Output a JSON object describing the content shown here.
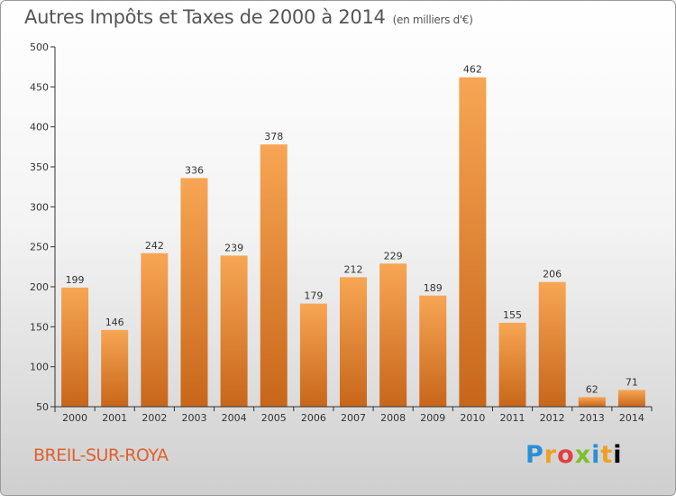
{
  "header": {
    "title": "Autres Impôts et Taxes de 2000 à 2014",
    "unit": "(en milliers d'€)"
  },
  "footer": {
    "city": "BREIL-SUR-ROYA",
    "logo_letters": [
      "P",
      "r",
      "o",
      "x",
      "i",
      "t",
      "i"
    ]
  },
  "colors": {
    "bar_top": "#f7a654",
    "bar_bottom": "#c8661a",
    "axis": "#333333",
    "city_text": "#e06030"
  },
  "chart_data": {
    "type": "bar",
    "title": "Autres Impôts et Taxes de 2000 à 2014",
    "subtitle": "(en milliers d'€)",
    "categories": [
      "2000",
      "2001",
      "2002",
      "2003",
      "2004",
      "2005",
      "2006",
      "2007",
      "2008",
      "2009",
      "2010",
      "2011",
      "2012",
      "2013",
      "2014"
    ],
    "values": [
      199,
      146,
      242,
      336,
      239,
      378,
      179,
      212,
      229,
      189,
      462,
      155,
      206,
      62,
      71
    ],
    "ylim": [
      50,
      500
    ],
    "yticks": [
      50,
      100,
      150,
      200,
      250,
      300,
      350,
      400,
      450,
      500
    ],
    "xlabel": "",
    "ylabel": "",
    "grid": false,
    "legend": "none"
  }
}
